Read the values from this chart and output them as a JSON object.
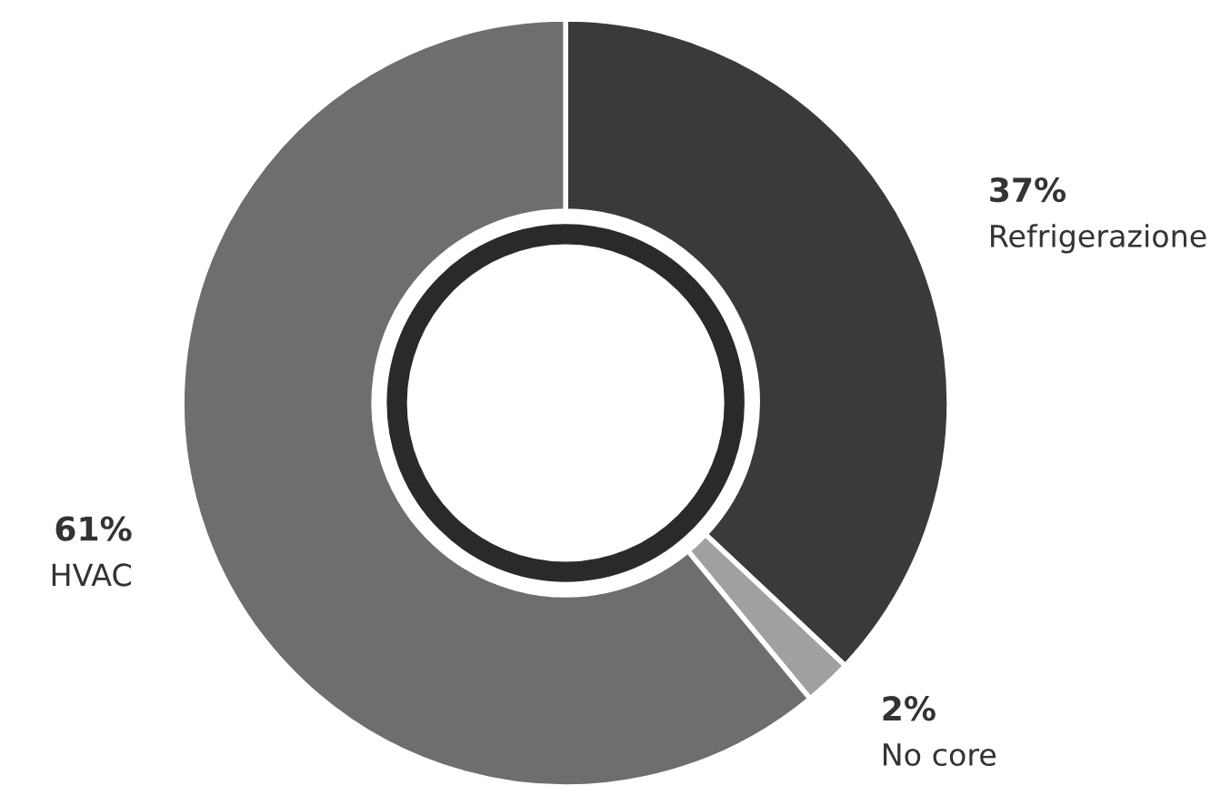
{
  "chart_data": {
    "type": "donut",
    "categories": [
      "Refrigerazione",
      "No core",
      "HVAC"
    ],
    "values": [
      37,
      2,
      61
    ],
    "colors": [
      "#3a3a3a",
      "#a0a0a0",
      "#6e6e6e"
    ],
    "value_labels": [
      "37%",
      "2%",
      "61%"
    ],
    "legend": false
  }
}
